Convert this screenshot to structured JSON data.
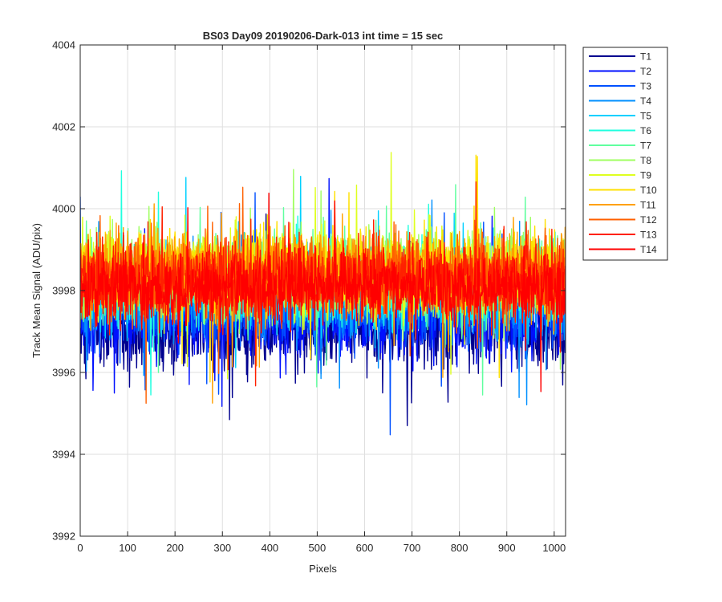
{
  "chart_data": {
    "type": "line",
    "title": "BS03 Day09 20190206-Dark-013 int time = 15 sec",
    "xlabel": "Pixels",
    "ylabel": "Track Mean Signal (ADU/pix)",
    "xlim": [
      0,
      1024
    ],
    "ylim": [
      3992,
      4004
    ],
    "xticks": [
      0,
      100,
      200,
      300,
      400,
      500,
      600,
      700,
      800,
      900,
      1000
    ],
    "yticks": [
      3992,
      3994,
      3996,
      3998,
      4000,
      4002,
      4004
    ],
    "grid": true,
    "legend_position": "outside-top-right",
    "series": [
      {
        "name": "T1",
        "color": "#00008F",
        "mean": 3997.05,
        "spread": 0.8
      },
      {
        "name": "T2",
        "color": "#0010FF",
        "mean": 3997.35,
        "spread": 0.75
      },
      {
        "name": "T3",
        "color": "#0050FF",
        "mean": 3997.6,
        "spread": 0.75
      },
      {
        "name": "T4",
        "color": "#0090FF",
        "mean": 3997.85,
        "spread": 0.75
      },
      {
        "name": "T5",
        "color": "#00D0FF",
        "mean": 3998.05,
        "spread": 0.8
      },
      {
        "name": "T6",
        "color": "#20FFDF",
        "mean": 3998.2,
        "spread": 0.8
      },
      {
        "name": "T7",
        "color": "#60FF9F",
        "mean": 3998.3,
        "spread": 0.8
      },
      {
        "name": "T8",
        "color": "#9FFF60",
        "mean": 3998.4,
        "spread": 0.8
      },
      {
        "name": "T9",
        "color": "#DFFF20",
        "mean": 3998.45,
        "spread": 0.8
      },
      {
        "name": "T10",
        "color": "#FFE000",
        "mean": 3998.5,
        "spread": 0.8
      },
      {
        "name": "T11",
        "color": "#FFA000",
        "mean": 3998.45,
        "spread": 0.8
      },
      {
        "name": "T12",
        "color": "#FF6000",
        "mean": 3998.35,
        "spread": 0.8
      },
      {
        "name": "T13",
        "color": "#FF2000",
        "mean": 3998.2,
        "spread": 0.8
      },
      {
        "name": "T14",
        "color": "#FF0000",
        "mean": 3998.1,
        "spread": 0.7
      }
    ]
  }
}
